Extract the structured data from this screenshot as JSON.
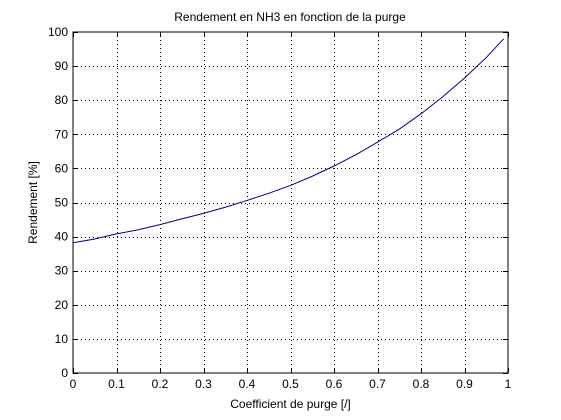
{
  "chart_data": {
    "type": "line",
    "title": "Rendement en NH3 en fonction de la purge",
    "xlabel": "Coefficient de purge [/]",
    "ylabel": "Rendement [%]",
    "xlim": [
      0,
      1
    ],
    "ylim": [
      0,
      100
    ],
    "xticks": [
      "0",
      "0.1",
      "0.2",
      "0.3",
      "0.4",
      "0.5",
      "0.6",
      "0.7",
      "0.8",
      "0.9",
      "1"
    ],
    "yticks": [
      "0",
      "10",
      "20",
      "30",
      "40",
      "50",
      "60",
      "70",
      "80",
      "90",
      "100"
    ],
    "grid": true,
    "grid_style": "dotted",
    "series_color": "#00008b",
    "series": [
      {
        "x": [
          0.0,
          0.05,
          0.1,
          0.15,
          0.2,
          0.25,
          0.3,
          0.35,
          0.4,
          0.45,
          0.5,
          0.55,
          0.6,
          0.65,
          0.7,
          0.75,
          0.8,
          0.85,
          0.9,
          0.95,
          0.99
        ],
        "y": [
          38.2,
          39.3,
          40.8,
          42.0,
          43.5,
          45.2,
          46.8,
          48.6,
          50.6,
          52.7,
          55.0,
          57.7,
          60.7,
          64.0,
          67.7,
          71.5,
          76.0,
          81.0,
          86.5,
          92.5,
          98.0
        ]
      }
    ]
  }
}
